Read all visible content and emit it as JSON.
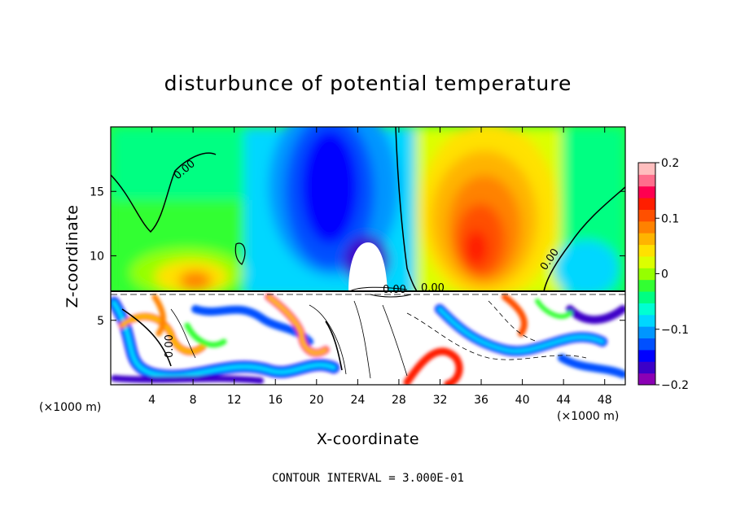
{
  "chart_data": {
    "type": "heatmap",
    "title": "disturbunce of potential temperature",
    "xlabel": "X-coordinate",
    "ylabel": "Z-coordinate",
    "x_unit": "(×1000 m)",
    "x_unit_right": "(×1000 m)",
    "xlim": [
      0,
      50
    ],
    "ylim": [
      0,
      20
    ],
    "x_ticks": [
      "4",
      "8",
      "12",
      "16",
      "20",
      "24",
      "28",
      "32",
      "36",
      "40",
      "44",
      "48"
    ],
    "y_ticks": [
      "5",
      "10",
      "15"
    ],
    "colorbar": {
      "range": [
        -0.2,
        0.2
      ],
      "tick_labels": [
        "0.2",
        "0.1",
        "0",
        "−0.1",
        "−0.2"
      ],
      "colors": [
        "#8b00b4",
        "#3c00c8",
        "#0000ff",
        "#0050ff",
        "#0096ff",
        "#00d7ff",
        "#00ffd2",
        "#00ff82",
        "#32ff32",
        "#96ff00",
        "#dcff00",
        "#ffe100",
        "#ffb400",
        "#ff8200",
        "#ff5000",
        "#ff1e00",
        "#ff0050",
        "#ff6e8c",
        "#ffbebe"
      ]
    },
    "contour_labels": [
      "0.00",
      "0.00",
      "0.00",
      "0.00",
      "0.00"
    ],
    "footnote": "CONTOUR INTERVAL = 3.000E-01",
    "grid": false
  }
}
